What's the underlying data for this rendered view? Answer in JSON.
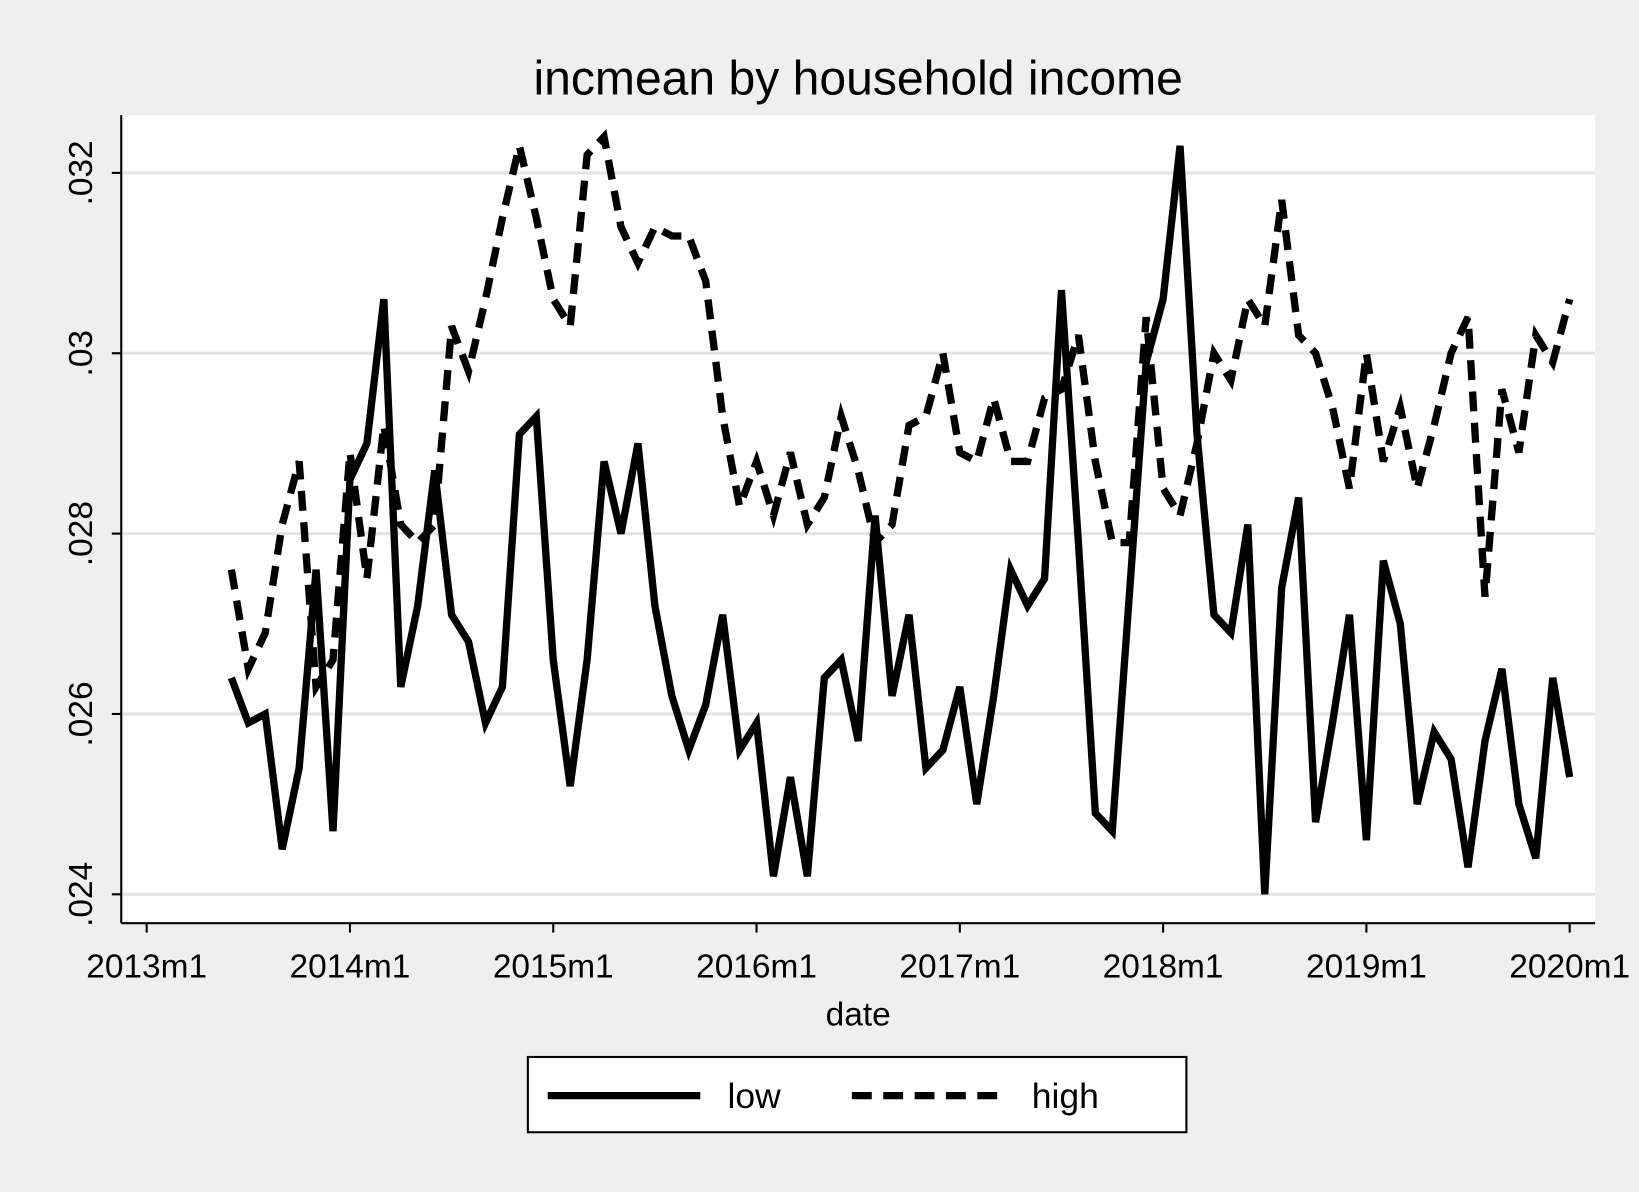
{
  "chart_data": {
    "type": "line",
    "title": "incmean by household income",
    "x_label": "date",
    "x": [
      641,
      642,
      643,
      644,
      645,
      646,
      647,
      648,
      649,
      650,
      651,
      652,
      653,
      654,
      655,
      656,
      657,
      658,
      659,
      660,
      661,
      662,
      663,
      664,
      665,
      666,
      667,
      668,
      669,
      670,
      671,
      672,
      673,
      674,
      675,
      676,
      677,
      678,
      679,
      680,
      681,
      682,
      683,
      684,
      685,
      686,
      687,
      688,
      689,
      690,
      691,
      692,
      693,
      694,
      695,
      696,
      697,
      698,
      699,
      700,
      701,
      702,
      703,
      704,
      705,
      706,
      707,
      708,
      709,
      710,
      711,
      712,
      713,
      714,
      715,
      716,
      717,
      718,
      719,
      720
    ],
    "series": [
      {
        "name": "low",
        "color": "#000000",
        "dash": "solid",
        "values": [
          0.0264,
          0.0259,
          0.026,
          0.0245,
          0.0254,
          0.0276,
          0.0247,
          0.0286,
          0.029,
          0.0306,
          0.0263,
          0.0272,
          0.0287,
          0.0271,
          0.0268,
          0.0259,
          0.0263,
          0.0291,
          0.0293,
          0.0266,
          0.0252,
          0.0266,
          0.0288,
          0.028,
          0.029,
          0.0272,
          0.0262,
          0.0256,
          0.0261,
          0.0271,
          0.0256,
          0.0259,
          0.0242,
          0.0253,
          0.0242,
          0.0264,
          0.0266,
          0.0257,
          0.0282,
          0.0262,
          0.0271,
          0.0254,
          0.0256,
          0.0263,
          0.025,
          0.0262,
          0.0276,
          0.0272,
          0.0275,
          0.0307,
          0.0279,
          0.0249,
          0.0247,
          0.0273,
          0.0299,
          0.0306,
          0.0323,
          0.0291,
          0.0271,
          0.0269,
          0.0281,
          0.024,
          0.0274,
          0.0284,
          0.0248,
          0.0259,
          0.0271,
          0.0246,
          0.0277,
          0.027,
          0.025,
          0.0258,
          0.0255,
          0.0243,
          0.0257,
          0.0265,
          0.025,
          0.0244,
          0.0264,
          0.0253
        ]
      },
      {
        "name": "high",
        "color": "#000000",
        "dash": "dashed",
        "values": [
          0.0276,
          0.0265,
          0.0269,
          0.0281,
          0.0288,
          0.0263,
          0.0266,
          0.0289,
          0.0275,
          0.0292,
          0.0281,
          0.0279,
          0.0281,
          0.0303,
          0.0298,
          0.0306,
          0.0315,
          0.0323,
          0.0315,
          0.0306,
          0.0303,
          0.0322,
          0.0324,
          0.0314,
          0.031,
          0.0314,
          0.0313,
          0.0313,
          0.0308,
          0.0293,
          0.0283,
          0.0288,
          0.0282,
          0.0289,
          0.0281,
          0.0284,
          0.0293,
          0.0287,
          0.0279,
          0.0281,
          0.0292,
          0.0293,
          0.03,
          0.0289,
          0.0288,
          0.0295,
          0.0288,
          0.0288,
          0.0295,
          0.0296,
          0.0302,
          0.0288,
          0.0279,
          0.0279,
          0.0304,
          0.0285,
          0.0282,
          0.029,
          0.03,
          0.0297,
          0.0306,
          0.0303,
          0.0317,
          0.0302,
          0.03,
          0.0294,
          0.0285,
          0.03,
          0.0288,
          0.0294,
          0.0285,
          0.0292,
          0.03,
          0.0304,
          0.0273,
          0.0296,
          0.0289,
          0.0302,
          0.0299,
          0.0306
        ]
      }
    ],
    "xlim": [
      634.5,
      721.5
    ],
    "ylim": [
      0.02368,
      0.03264
    ],
    "xticks": [
      {
        "value": 636,
        "label": "2013m1"
      },
      {
        "value": 648,
        "label": "2014m1"
      },
      {
        "value": 660,
        "label": "2015m1"
      },
      {
        "value": 672,
        "label": "2016m1"
      },
      {
        "value": 684,
        "label": "2017m1"
      },
      {
        "value": 696,
        "label": "2018m1"
      },
      {
        "value": 708,
        "label": "2019m1"
      },
      {
        "value": 720,
        "label": "2020m1"
      }
    ],
    "yticks": [
      {
        "value": 0.024,
        "label": ".024"
      },
      {
        "value": 0.026,
        "label": ".026"
      },
      {
        "value": 0.028,
        "label": ".028"
      },
      {
        "value": 0.03,
        "label": ".03"
      },
      {
        "value": 0.032,
        "label": ".032"
      }
    ],
    "grid": true,
    "legend": "bottom"
  }
}
